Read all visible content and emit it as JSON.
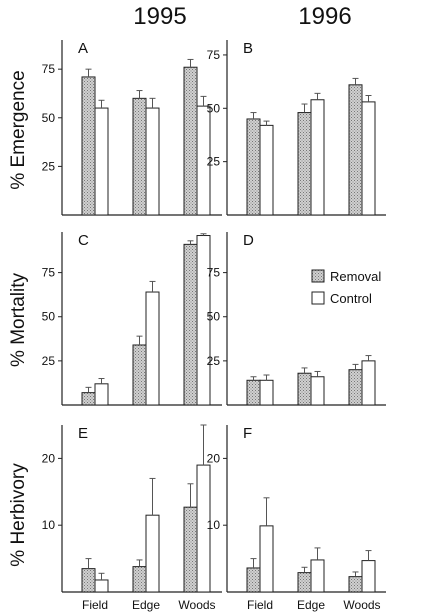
{
  "figure": {
    "col_headers": [
      "1995",
      "1996"
    ],
    "row_labels": [
      "% Emergence",
      "% Mortality",
      "% Herbivory"
    ]
  },
  "legend": {
    "removal": "Removal",
    "control": "Control"
  },
  "colors": {
    "removal_fill": "#c9c9c9",
    "control_fill": "#ffffff",
    "stroke": "#222222"
  },
  "chart_data": [
    {
      "panel": "A",
      "type": "bar",
      "categories": [
        "Field",
        "Edge",
        "Woods"
      ],
      "ylim": [
        0,
        90
      ],
      "yticks": [
        25,
        50,
        75
      ],
      "series": [
        {
          "name": "Removal",
          "values": [
            71,
            60,
            76
          ],
          "errors": [
            4,
            4,
            4
          ]
        },
        {
          "name": "Control",
          "values": [
            55,
            55,
            56
          ],
          "errors": [
            4,
            5,
            5
          ]
        }
      ]
    },
    {
      "panel": "B",
      "type": "bar",
      "categories": [
        "Field",
        "Edge",
        "Woods"
      ],
      "ylim": [
        0,
        82
      ],
      "yticks": [
        25,
        50,
        75
      ],
      "series": [
        {
          "name": "Removal",
          "values": [
            45,
            48,
            61
          ],
          "errors": [
            3,
            4,
            3
          ]
        },
        {
          "name": "Control",
          "values": [
            42,
            54,
            53
          ],
          "errors": [
            2,
            3,
            3
          ]
        }
      ]
    },
    {
      "panel": "C",
      "type": "bar",
      "categories": [
        "Field",
        "Edge",
        "Woods"
      ],
      "ylim": [
        0,
        98
      ],
      "yticks": [
        25,
        50,
        75
      ],
      "series": [
        {
          "name": "Removal",
          "values": [
            7,
            34,
            91
          ],
          "errors": [
            3,
            5,
            2
          ]
        },
        {
          "name": "Control",
          "values": [
            12,
            64,
            96
          ],
          "errors": [
            3,
            6,
            1
          ]
        }
      ]
    },
    {
      "panel": "D",
      "type": "bar",
      "categories": [
        "Field",
        "Edge",
        "Woods"
      ],
      "ylim": [
        0,
        98
      ],
      "yticks": [
        25,
        50,
        75
      ],
      "series": [
        {
          "name": "Removal",
          "values": [
            14,
            18,
            20
          ],
          "errors": [
            2,
            3,
            3
          ]
        },
        {
          "name": "Control",
          "values": [
            14,
            16,
            25
          ],
          "errors": [
            3,
            3,
            3
          ]
        }
      ]
    },
    {
      "panel": "E",
      "type": "bar",
      "categories": [
        "Field",
        "Edge",
        "Woods"
      ],
      "ylim": [
        0,
        25
      ],
      "yticks": [
        10,
        20
      ],
      "series": [
        {
          "name": "Removal",
          "values": [
            3.5,
            3.8,
            12.7
          ],
          "errors": [
            1.5,
            1.0,
            3.5
          ]
        },
        {
          "name": "Control",
          "values": [
            1.8,
            11.5,
            19.0
          ],
          "errors": [
            1.0,
            5.5,
            6.0
          ]
        }
      ]
    },
    {
      "panel": "F",
      "type": "bar",
      "categories": [
        "Field",
        "Edge",
        "Woods"
      ],
      "ylim": [
        0,
        25
      ],
      "yticks": [
        10,
        20
      ],
      "series": [
        {
          "name": "Removal",
          "values": [
            3.6,
            2.9,
            2.3
          ],
          "errors": [
            1.4,
            0.8,
            0.7
          ]
        },
        {
          "name": "Control",
          "values": [
            9.9,
            4.8,
            4.7
          ],
          "errors": [
            4.2,
            1.8,
            1.5
          ]
        }
      ]
    }
  ]
}
